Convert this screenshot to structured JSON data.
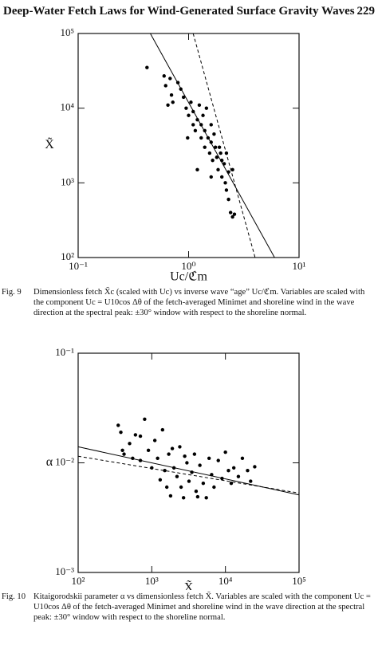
{
  "header": {
    "title": "Deep-Water Fetch Laws for Wind-Generated Surface Gravity Waves",
    "page": "229"
  },
  "chart_data": [
    {
      "type": "scatter",
      "xlabel": "Uc/ℭm",
      "ylabel": "X̃",
      "log_x": true,
      "log_y": true,
      "xlim": [
        0.1,
        10
      ],
      "ylim": [
        100,
        100000
      ],
      "xticks": [
        {
          "value": 0.1,
          "label": "10⁻¹"
        },
        {
          "value": 1,
          "label": "10⁰"
        },
        {
          "value": 10,
          "label": "10¹"
        }
      ],
      "yticks": [
        {
          "value": 100,
          "label": "10²"
        },
        {
          "value": 1000,
          "label": "10³"
        },
        {
          "value": 10000,
          "label": "10⁴"
        },
        {
          "value": 100000,
          "label": "10⁵"
        }
      ],
      "series": [
        {
          "type": "scatter",
          "color": "#000000",
          "x": [
            0.42,
            0.6,
            0.62,
            0.68,
            0.7,
            0.72,
            0.65,
            0.8,
            0.85,
            0.9,
            0.95,
            1.0,
            1.05,
            1.1,
            1.1,
            1.15,
            1.2,
            1.25,
            1.3,
            1.3,
            1.35,
            1.4,
            1.4,
            1.45,
            1.5,
            1.55,
            1.6,
            1.6,
            1.65,
            1.7,
            1.75,
            1.8,
            1.85,
            1.9,
            1.95,
            2.0,
            2.0,
            2.1,
            2.15,
            2.2,
            2.2,
            2.3,
            2.3,
            2.4,
            2.5,
            2.6,
            1.2,
            0.98,
            1.6,
            2.5
          ],
          "values": [
            35000,
            27000,
            20000,
            25000,
            15000,
            12000,
            11000,
            22000,
            18000,
            14000,
            10000,
            8000,
            12000,
            9000,
            6000,
            5000,
            7000,
            11000,
            6000,
            4000,
            8000,
            3000,
            5000,
            10000,
            4000,
            2500,
            6000,
            3500,
            2000,
            4500,
            3000,
            2200,
            1500,
            3000,
            2500,
            2000,
            1200,
            1800,
            1000,
            2500,
            800,
            1400,
            600,
            400,
            350,
            380,
            1500,
            4000,
            1200,
            1500
          ]
        },
        {
          "type": "line",
          "style": "solid",
          "color": "#000000",
          "x": [
            0.45,
            6
          ],
          "values": [
            100000,
            100
          ]
        },
        {
          "type": "line",
          "style": "dashed",
          "color": "#000000",
          "x": [
            1.1,
            4
          ],
          "values": [
            100000,
            100
          ]
        }
      ]
    },
    {
      "type": "scatter",
      "xlabel": "X̃",
      "ylabel": "α",
      "log_x": true,
      "log_y": true,
      "xlim": [
        100,
        100000
      ],
      "ylim": [
        0.001,
        0.1
      ],
      "xticks": [
        {
          "value": 100,
          "label": "10²"
        },
        {
          "value": 1000,
          "label": "10³"
        },
        {
          "value": 10000,
          "label": "10⁴"
        },
        {
          "value": 100000,
          "label": "10⁵"
        }
      ],
      "yticks": [
        {
          "value": 0.001,
          "label": "10⁻³"
        },
        {
          "value": 0.01,
          "label": "10⁻²"
        },
        {
          "value": 0.1,
          "label": "10⁻¹"
        }
      ],
      "series": [
        {
          "type": "scatter",
          "color": "#000000",
          "x": [
            350,
            380,
            400,
            420,
            500,
            550,
            600,
            700,
            800,
            900,
            1000,
            1100,
            1200,
            1300,
            1400,
            1500,
            1600,
            1700,
            1800,
            2000,
            2200,
            2400,
            2500,
            2700,
            3000,
            3200,
            3500,
            3800,
            4000,
            4500,
            5000,
            5500,
            6000,
            6500,
            7000,
            8000,
            9000,
            10000,
            11000,
            12000,
            13000,
            15000,
            17000,
            20000,
            22000,
            25000,
            2800,
            1900,
            700,
            4200
          ],
          "values": [
            0.022,
            0.019,
            0.013,
            0.012,
            0.015,
            0.011,
            0.018,
            0.0105,
            0.025,
            0.013,
            0.009,
            0.016,
            0.011,
            0.007,
            0.02,
            0.0085,
            0.006,
            0.012,
            0.005,
            0.009,
            0.0075,
            0.014,
            0.006,
            0.0048,
            0.01,
            0.0068,
            0.0082,
            0.012,
            0.0055,
            0.0095,
            0.0065,
            0.0048,
            0.011,
            0.0078,
            0.006,
            0.0105,
            0.0072,
            0.0125,
            0.0085,
            0.0065,
            0.009,
            0.0075,
            0.011,
            0.0085,
            0.0068,
            0.0092,
            0.0115,
            0.0135,
            0.0175,
            0.0049
          ]
        },
        {
          "type": "line",
          "style": "solid",
          "color": "#000000",
          "x": [
            100,
            100000
          ],
          "values": [
            0.014,
            0.0051
          ]
        },
        {
          "type": "line",
          "style": "dashed",
          "color": "#000000",
          "x": [
            100,
            100000
          ],
          "values": [
            0.0115,
            0.0053
          ]
        }
      ]
    }
  ],
  "captions": [
    {
      "label": "Fig. 9",
      "text": "Dimensionless fetch X̃c (scaled with Uc) vs inverse wave “age” Uc/ℭm. Variables are scaled with the component Uc = U10cos Δθ of the fetch-averaged Minimet and shoreline wind in the wave direction at the spectral peak: ±30° window with respect to the shoreline normal."
    },
    {
      "label": "Fig. 10",
      "text": "Kitaigorodskii parameter α vs dimensionless fetch X̃. Variables are scaled with the component Uc = U10cos Δθ of the fetch-averaged Minimet and shoreline wind in the wave direction at the spectral peak: ±30° window with respect to the shoreline normal."
    }
  ]
}
